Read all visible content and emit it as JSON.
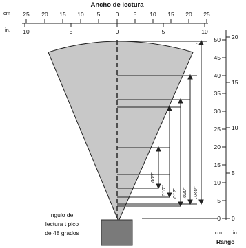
{
  "title": "Ancho de lectura",
  "top_scale": {
    "cm_label": "cm",
    "in_label": "in.",
    "cm_left": [
      "25",
      "20",
      "15",
      "10",
      "5",
      "0"
    ],
    "cm_right": [
      "5",
      "10",
      "15",
      "20",
      "25"
    ],
    "in_left": [
      "10",
      "5",
      "0"
    ],
    "in_right": [
      "5",
      "10"
    ]
  },
  "right_scale": {
    "cm_values": [
      "50",
      "45",
      "40",
      "35",
      "30",
      "25",
      "20",
      "15",
      "10",
      "5",
      "0"
    ],
    "in_values": [
      "20",
      "15",
      "10",
      "5",
      "0"
    ],
    "cm_label": "cm",
    "in_label": "in.",
    "axis_label": "Rango"
  },
  "note_lines": [
    "ngulo de",
    "lectura t pico",
    "de 48 grados"
  ],
  "resolutions": [
    ".005\"",
    ".010\"",
    ".012\"",
    ".020\"",
    ".040\""
  ],
  "colors": {
    "cone_fill": "#c8c8c8",
    "scanner_fill": "#7a7a7a",
    "line": "#222222"
  }
}
